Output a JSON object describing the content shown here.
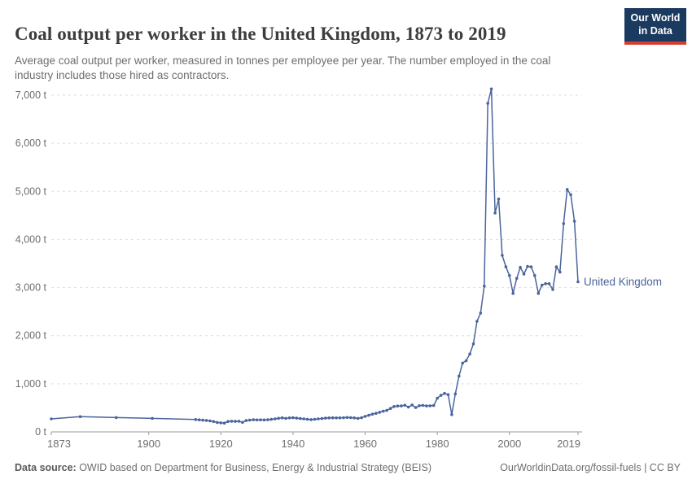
{
  "header": {
    "title": "Coal output per worker in the United Kingdom, 1873 to 2019",
    "subtitle": "Average coal output per worker, measured in tonnes per employee per year. The number employed in the coal industry includes those hired as contractors.",
    "logo": {
      "line1": "Our World",
      "line2": "in Data",
      "bg_color": "#1b3a5f",
      "stripe_color": "#d73c32"
    }
  },
  "footer": {
    "datasource_label": "Data source:",
    "datasource_text": " OWID based on Department for Business, Energy & Industrial Strategy (BEIS)",
    "link_text": "OurWorldinData.org/fossil-fuels",
    "separator": " | ",
    "license_text": "CC BY"
  },
  "chart_data": {
    "type": "line",
    "title": "Coal output per worker in the United Kingdom, 1873 to 2019",
    "unit": "tonnes per employee per year",
    "xlim": [
      1873,
      2019
    ],
    "ylim": [
      0,
      7300
    ],
    "grid": "horizontal-dashed",
    "legend_position": "end-of-line-label",
    "x_ticks": [
      1873,
      1900,
      1920,
      1940,
      1960,
      1980,
      2000,
      2019
    ],
    "y_ticks": [
      0,
      1000,
      2000,
      3000,
      4000,
      5000,
      6000,
      7000
    ],
    "y_tick_labels": [
      "0 t",
      "1,000 t",
      "2,000 t",
      "3,000 t",
      "4,000 t",
      "5,000 t",
      "6,000 t",
      "7,000 t"
    ],
    "line_color": "#4a649c",
    "grid_color": "#dedede",
    "axis_color": "#9a9a9a",
    "tick_label_color": "#6e6e6e",
    "series": [
      {
        "name": "United Kingdom",
        "color": "#4a649c",
        "points": [
          [
            1873,
            270
          ],
          [
            1881,
            316
          ],
          [
            1891,
            298
          ],
          [
            1901,
            280
          ],
          [
            1913,
            257
          ],
          [
            1914,
            250
          ],
          [
            1915,
            244
          ],
          [
            1916,
            238
          ],
          [
            1917,
            228
          ],
          [
            1918,
            215
          ],
          [
            1919,
            196
          ],
          [
            1920,
            187
          ],
          [
            1921,
            183
          ],
          [
            1922,
            216
          ],
          [
            1923,
            222
          ],
          [
            1924,
            218
          ],
          [
            1925,
            222
          ],
          [
            1926,
            198
          ],
          [
            1927,
            235
          ],
          [
            1928,
            245
          ],
          [
            1929,
            252
          ],
          [
            1930,
            248
          ],
          [
            1931,
            250
          ],
          [
            1932,
            248
          ],
          [
            1933,
            252
          ],
          [
            1934,
            260
          ],
          [
            1935,
            270
          ],
          [
            1936,
            282
          ],
          [
            1937,
            292
          ],
          [
            1938,
            280
          ],
          [
            1939,
            290
          ],
          [
            1940,
            295
          ],
          [
            1941,
            285
          ],
          [
            1942,
            278
          ],
          [
            1943,
            270
          ],
          [
            1944,
            262
          ],
          [
            1945,
            255
          ],
          [
            1946,
            262
          ],
          [
            1947,
            270
          ],
          [
            1948,
            278
          ],
          [
            1949,
            285
          ],
          [
            1950,
            290
          ],
          [
            1951,
            292
          ],
          [
            1952,
            290
          ],
          [
            1953,
            292
          ],
          [
            1954,
            295
          ],
          [
            1955,
            300
          ],
          [
            1956,
            296
          ],
          [
            1957,
            290
          ],
          [
            1958,
            280
          ],
          [
            1959,
            295
          ],
          [
            1960,
            323
          ],
          [
            1961,
            345
          ],
          [
            1962,
            368
          ],
          [
            1963,
            385
          ],
          [
            1964,
            408
          ],
          [
            1965,
            430
          ],
          [
            1966,
            447
          ],
          [
            1967,
            487
          ],
          [
            1968,
            527
          ],
          [
            1969,
            538
          ],
          [
            1970,
            540
          ],
          [
            1971,
            555
          ],
          [
            1972,
            515
          ],
          [
            1973,
            560
          ],
          [
            1974,
            505
          ],
          [
            1975,
            545
          ],
          [
            1976,
            552
          ],
          [
            1977,
            540
          ],
          [
            1978,
            542
          ],
          [
            1979,
            548
          ],
          [
            1980,
            700
          ],
          [
            1981,
            760
          ],
          [
            1982,
            800
          ],
          [
            1983,
            775
          ],
          [
            1984,
            360
          ],
          [
            1985,
            790
          ],
          [
            1986,
            1160
          ],
          [
            1987,
            1430
          ],
          [
            1988,
            1480
          ],
          [
            1989,
            1620
          ],
          [
            1990,
            1830
          ],
          [
            1991,
            2300
          ],
          [
            1992,
            2470
          ],
          [
            1993,
            3030
          ],
          [
            1994,
            6830
          ],
          [
            1995,
            7130
          ],
          [
            1996,
            4550
          ],
          [
            1997,
            4840
          ],
          [
            1998,
            3670
          ],
          [
            1999,
            3430
          ],
          [
            2000,
            3250
          ],
          [
            2001,
            2880
          ],
          [
            2002,
            3190
          ],
          [
            2003,
            3420
          ],
          [
            2004,
            3280
          ],
          [
            2005,
            3440
          ],
          [
            2006,
            3430
          ],
          [
            2007,
            3250
          ],
          [
            2008,
            2880
          ],
          [
            2009,
            3050
          ],
          [
            2010,
            3080
          ],
          [
            2011,
            3080
          ],
          [
            2012,
            2960
          ],
          [
            2013,
            3430
          ],
          [
            2014,
            3320
          ],
          [
            2015,
            4330
          ],
          [
            2016,
            5040
          ],
          [
            2017,
            4930
          ],
          [
            2018,
            4380
          ],
          [
            2019,
            3120
          ]
        ],
        "end_label": "United Kingdom"
      }
    ]
  }
}
